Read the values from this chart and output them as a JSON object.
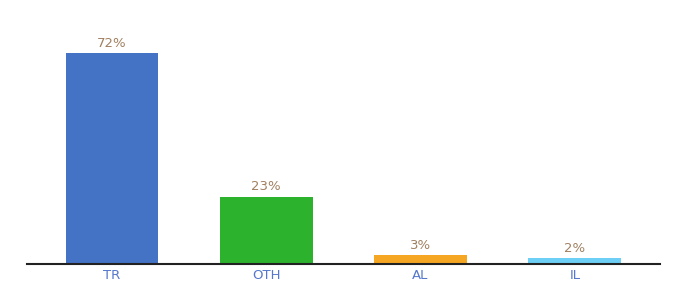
{
  "categories": [
    "TR",
    "OTH",
    "AL",
    "IL"
  ],
  "values": [
    72,
    23,
    3,
    2
  ],
  "bar_colors": [
    "#4472c4",
    "#2db22d",
    "#f5a623",
    "#6ecff6"
  ],
  "label_texts": [
    "72%",
    "23%",
    "3%",
    "2%"
  ],
  "label_color": "#a08060",
  "background_color": "#ffffff",
  "ylim": [
    0,
    82
  ],
  "bar_width": 0.6,
  "xlabel_fontsize": 9.5,
  "label_fontsize": 9.5,
  "tick_color": "#5577cc",
  "xlim_left": -0.55,
  "xlim_right": 3.55
}
